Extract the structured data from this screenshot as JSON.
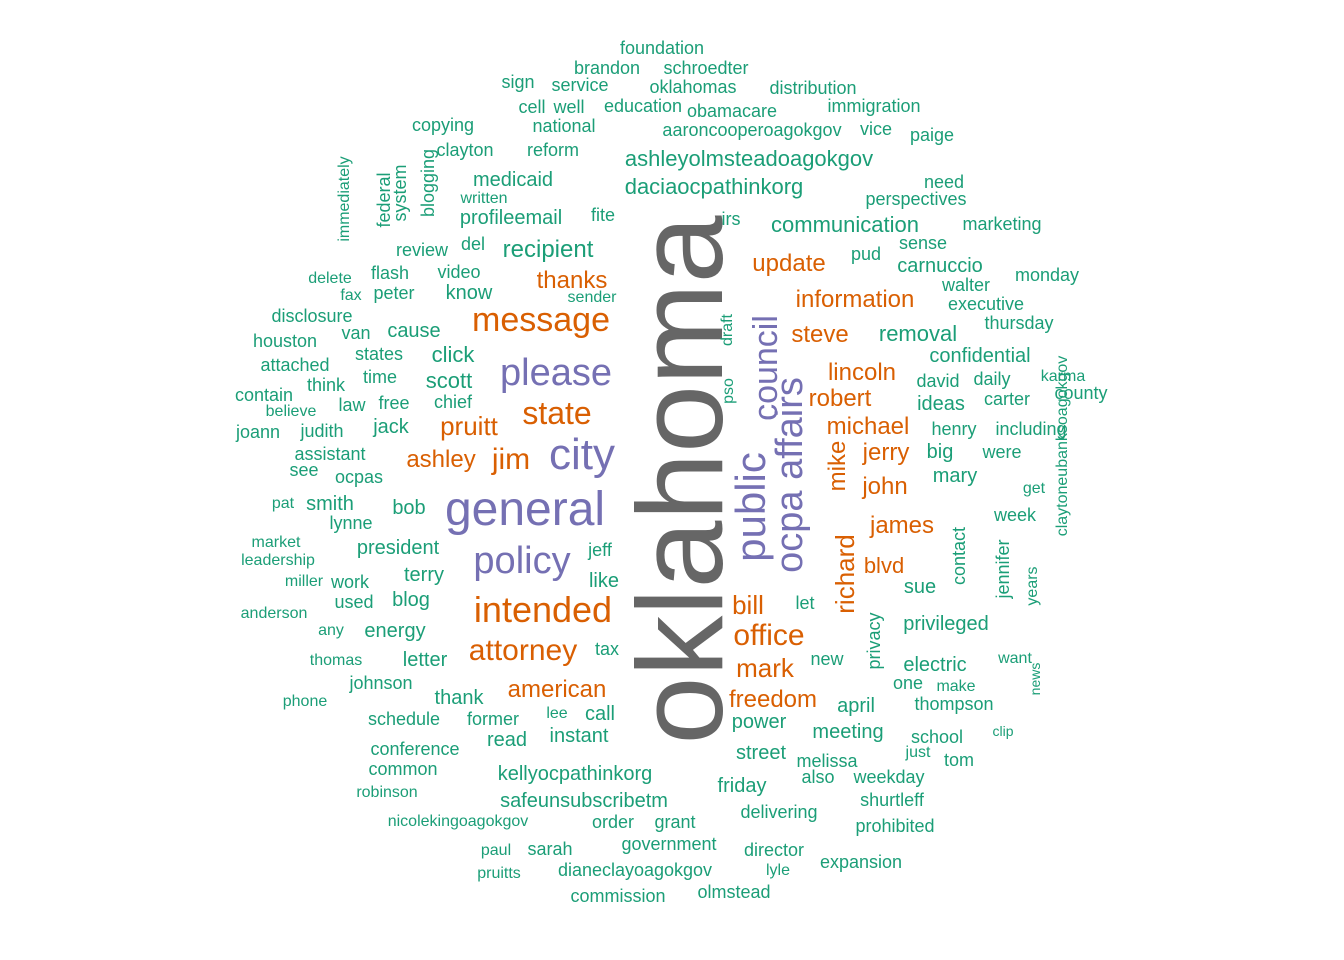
{
  "colors": {
    "dominant": "#666666",
    "large": "#7570b3",
    "medium": "#d95f02",
    "small": "#1b9e77"
  },
  "words": [
    {
      "text": "oklahoma",
      "color": "dominant",
      "rotated": true
    },
    {
      "text": "general",
      "color": "large"
    },
    {
      "text": "please",
      "color": "large"
    },
    {
      "text": "city",
      "color": "large"
    },
    {
      "text": "policy",
      "color": "large"
    },
    {
      "text": "public",
      "color": "large",
      "rotated": true
    },
    {
      "text": "council",
      "color": "large",
      "rotated": true
    },
    {
      "text": "ocpa affairs",
      "color": "large",
      "rotated": true
    },
    {
      "text": "intended",
      "color": "medium"
    },
    {
      "text": "message",
      "color": "medium"
    },
    {
      "text": "state",
      "color": "medium"
    },
    {
      "text": "jim",
      "color": "medium"
    },
    {
      "text": "attorney",
      "color": "medium"
    },
    {
      "text": "office",
      "color": "medium"
    },
    {
      "text": "pruitt",
      "color": "medium"
    },
    {
      "text": "ashley",
      "color": "medium"
    },
    {
      "text": "thanks",
      "color": "medium"
    },
    {
      "text": "update",
      "color": "medium"
    },
    {
      "text": "information",
      "color": "medium"
    },
    {
      "text": "steve",
      "color": "medium"
    },
    {
      "text": "lincoln",
      "color": "medium"
    },
    {
      "text": "robert",
      "color": "medium"
    },
    {
      "text": "michael",
      "color": "medium"
    },
    {
      "text": "jerry",
      "color": "medium"
    },
    {
      "text": "john",
      "color": "medium"
    },
    {
      "text": "james",
      "color": "medium"
    },
    {
      "text": "blvd",
      "color": "medium"
    },
    {
      "text": "mike",
      "color": "medium",
      "rotated": true
    },
    {
      "text": "richard",
      "color": "medium",
      "rotated": true
    },
    {
      "text": "bill",
      "color": "medium"
    },
    {
      "text": "mark",
      "color": "medium"
    },
    {
      "text": "american",
      "color": "medium"
    },
    {
      "text": "freedom",
      "color": "medium"
    },
    {
      "text": "foundation",
      "color": "small"
    },
    {
      "text": "brandon",
      "color": "small"
    },
    {
      "text": "schroedter",
      "color": "small"
    },
    {
      "text": "sign",
      "color": "small"
    },
    {
      "text": "service",
      "color": "small"
    },
    {
      "text": "oklahomas",
      "color": "small"
    },
    {
      "text": "distribution",
      "color": "small"
    },
    {
      "text": "cell",
      "color": "small"
    },
    {
      "text": "well",
      "color": "small"
    },
    {
      "text": "education",
      "color": "small"
    },
    {
      "text": "obamacare",
      "color": "small"
    },
    {
      "text": "immigration",
      "color": "small"
    },
    {
      "text": "copying",
      "color": "small"
    },
    {
      "text": "national",
      "color": "small"
    },
    {
      "text": "aaroncooperoagokgov",
      "color": "small"
    },
    {
      "text": "vice",
      "color": "small"
    },
    {
      "text": "paige",
      "color": "small"
    },
    {
      "text": "clayton",
      "color": "small"
    },
    {
      "text": "reform",
      "color": "small"
    },
    {
      "text": "ashleyolmsteadoagokgov",
      "color": "small"
    },
    {
      "text": "immediately",
      "color": "small",
      "rotated": true
    },
    {
      "text": "federal",
      "color": "small",
      "rotated": true
    },
    {
      "text": "system",
      "color": "small",
      "rotated": true
    },
    {
      "text": "blogging",
      "color": "small",
      "rotated": true
    },
    {
      "text": "medicaid",
      "color": "small"
    },
    {
      "text": "daciaocpathinkorg",
      "color": "small"
    },
    {
      "text": "written",
      "color": "small"
    },
    {
      "text": "need",
      "color": "small"
    },
    {
      "text": "perspectives",
      "color": "small"
    },
    {
      "text": "profileemail",
      "color": "small"
    },
    {
      "text": "fite",
      "color": "small"
    },
    {
      "text": "irs",
      "color": "small"
    },
    {
      "text": "communication",
      "color": "small"
    },
    {
      "text": "marketing",
      "color": "small"
    },
    {
      "text": "review",
      "color": "small"
    },
    {
      "text": "del",
      "color": "small"
    },
    {
      "text": "recipient",
      "color": "small"
    },
    {
      "text": "pud",
      "color": "small"
    },
    {
      "text": "sense",
      "color": "small"
    },
    {
      "text": "delete",
      "color": "small"
    },
    {
      "text": "flash",
      "color": "small"
    },
    {
      "text": "video",
      "color": "small"
    },
    {
      "text": "carnuccio",
      "color": "small"
    },
    {
      "text": "monday",
      "color": "small"
    },
    {
      "text": "fax",
      "color": "small"
    },
    {
      "text": "peter",
      "color": "small"
    },
    {
      "text": "know",
      "color": "small"
    },
    {
      "text": "sender",
      "color": "small"
    },
    {
      "text": "walter",
      "color": "small"
    },
    {
      "text": "executive",
      "color": "small"
    },
    {
      "text": "disclosure",
      "color": "small"
    },
    {
      "text": "draft",
      "color": "small",
      "rotated": true
    },
    {
      "text": "thursday",
      "color": "small"
    },
    {
      "text": "van",
      "color": "small"
    },
    {
      "text": "cause",
      "color": "small"
    },
    {
      "text": "removal",
      "color": "small"
    },
    {
      "text": "houston",
      "color": "small"
    },
    {
      "text": "click",
      "color": "small"
    },
    {
      "text": "states",
      "color": "small"
    },
    {
      "text": "confidential",
      "color": "small"
    },
    {
      "text": "attached",
      "color": "small"
    },
    {
      "text": "time",
      "color": "small"
    },
    {
      "text": "pso",
      "color": "small",
      "rotated": true
    },
    {
      "text": "daily",
      "color": "small"
    },
    {
      "text": "karma",
      "color": "small"
    },
    {
      "text": "think",
      "color": "small"
    },
    {
      "text": "scott",
      "color": "small"
    },
    {
      "text": "david",
      "color": "small"
    },
    {
      "text": "county",
      "color": "small"
    },
    {
      "text": "contain",
      "color": "small"
    },
    {
      "text": "chief",
      "color": "small"
    },
    {
      "text": "carter",
      "color": "small"
    },
    {
      "text": "law",
      "color": "small"
    },
    {
      "text": "free",
      "color": "small"
    },
    {
      "text": "ideas",
      "color": "small"
    },
    {
      "text": "believe",
      "color": "small"
    },
    {
      "text": "jack",
      "color": "small"
    },
    {
      "text": "henry",
      "color": "small"
    },
    {
      "text": "including",
      "color": "small"
    },
    {
      "text": "joann",
      "color": "small"
    },
    {
      "text": "judith",
      "color": "small"
    },
    {
      "text": "assistant",
      "color": "small"
    },
    {
      "text": "big",
      "color": "small"
    },
    {
      "text": "were",
      "color": "small"
    },
    {
      "text": "see",
      "color": "small"
    },
    {
      "text": "ocpas",
      "color": "small"
    },
    {
      "text": "claytoneubanksoagokgov",
      "color": "small",
      "rotated": true
    },
    {
      "text": "mary",
      "color": "small"
    },
    {
      "text": "pat",
      "color": "small"
    },
    {
      "text": "smith",
      "color": "small"
    },
    {
      "text": "get",
      "color": "small"
    },
    {
      "text": "bob",
      "color": "small"
    },
    {
      "text": "lynne",
      "color": "small"
    },
    {
      "text": "week",
      "color": "small"
    },
    {
      "text": "market",
      "color": "small"
    },
    {
      "text": "jeff",
      "color": "small"
    },
    {
      "text": "contact",
      "color": "small",
      "rotated": true
    },
    {
      "text": "president",
      "color": "small"
    },
    {
      "text": "leadership",
      "color": "small"
    },
    {
      "text": "jennifer",
      "color": "small",
      "rotated": true
    },
    {
      "text": "terry",
      "color": "small"
    },
    {
      "text": "years",
      "color": "small",
      "rotated": true
    },
    {
      "text": "like",
      "color": "small"
    },
    {
      "text": "miller",
      "color": "small"
    },
    {
      "text": "work",
      "color": "small"
    },
    {
      "text": "sue",
      "color": "small"
    },
    {
      "text": "blog",
      "color": "small"
    },
    {
      "text": "used",
      "color": "small"
    },
    {
      "text": "let",
      "color": "small"
    },
    {
      "text": "anderson",
      "color": "small"
    },
    {
      "text": "privacy",
      "color": "small",
      "rotated": true
    },
    {
      "text": "privileged",
      "color": "small"
    },
    {
      "text": "any",
      "color": "small"
    },
    {
      "text": "energy",
      "color": "small"
    },
    {
      "text": "tax",
      "color": "small"
    },
    {
      "text": "letter",
      "color": "small"
    },
    {
      "text": "new",
      "color": "small"
    },
    {
      "text": "thomas",
      "color": "small"
    },
    {
      "text": "electric",
      "color": "small"
    },
    {
      "text": "want",
      "color": "small"
    },
    {
      "text": "johnson",
      "color": "small"
    },
    {
      "text": "one",
      "color": "small"
    },
    {
      "text": "make",
      "color": "small"
    },
    {
      "text": "news",
      "color": "small",
      "rotated": true
    },
    {
      "text": "thank",
      "color": "small"
    },
    {
      "text": "phone",
      "color": "small"
    },
    {
      "text": "april",
      "color": "small"
    },
    {
      "text": "thompson",
      "color": "small"
    },
    {
      "text": "schedule",
      "color": "small"
    },
    {
      "text": "former",
      "color": "small"
    },
    {
      "text": "lee",
      "color": "small"
    },
    {
      "text": "call",
      "color": "small"
    },
    {
      "text": "power",
      "color": "small"
    },
    {
      "text": "clip",
      "color": "small"
    },
    {
      "text": "read",
      "color": "small"
    },
    {
      "text": "instant",
      "color": "small"
    },
    {
      "text": "meeting",
      "color": "small"
    },
    {
      "text": "school",
      "color": "small"
    },
    {
      "text": "conference",
      "color": "small"
    },
    {
      "text": "street",
      "color": "small"
    },
    {
      "text": "just",
      "color": "small"
    },
    {
      "text": "melissa",
      "color": "small"
    },
    {
      "text": "tom",
      "color": "small"
    },
    {
      "text": "common",
      "color": "small"
    },
    {
      "text": "kellyocpathinkorg",
      "color": "small"
    },
    {
      "text": "also",
      "color": "small"
    },
    {
      "text": "weekday",
      "color": "small"
    },
    {
      "text": "friday",
      "color": "small"
    },
    {
      "text": "robinson",
      "color": "small"
    },
    {
      "text": "safeunsubscribetm",
      "color": "small"
    },
    {
      "text": "shurtleff",
      "color": "small"
    },
    {
      "text": "delivering",
      "color": "small"
    },
    {
      "text": "nicolekingoagokgov",
      "color": "small"
    },
    {
      "text": "order",
      "color": "small"
    },
    {
      "text": "grant",
      "color": "small"
    },
    {
      "text": "prohibited",
      "color": "small"
    },
    {
      "text": "government",
      "color": "small"
    },
    {
      "text": "paul",
      "color": "small"
    },
    {
      "text": "sarah",
      "color": "small"
    },
    {
      "text": "director",
      "color": "small"
    },
    {
      "text": "expansion",
      "color": "small"
    },
    {
      "text": "pruitts",
      "color": "small"
    },
    {
      "text": "dianeclayoagokgov",
      "color": "small"
    },
    {
      "text": "lyle",
      "color": "small"
    },
    {
      "text": "commission",
      "color": "small"
    },
    {
      "text": "olmstead",
      "color": "small"
    }
  ]
}
